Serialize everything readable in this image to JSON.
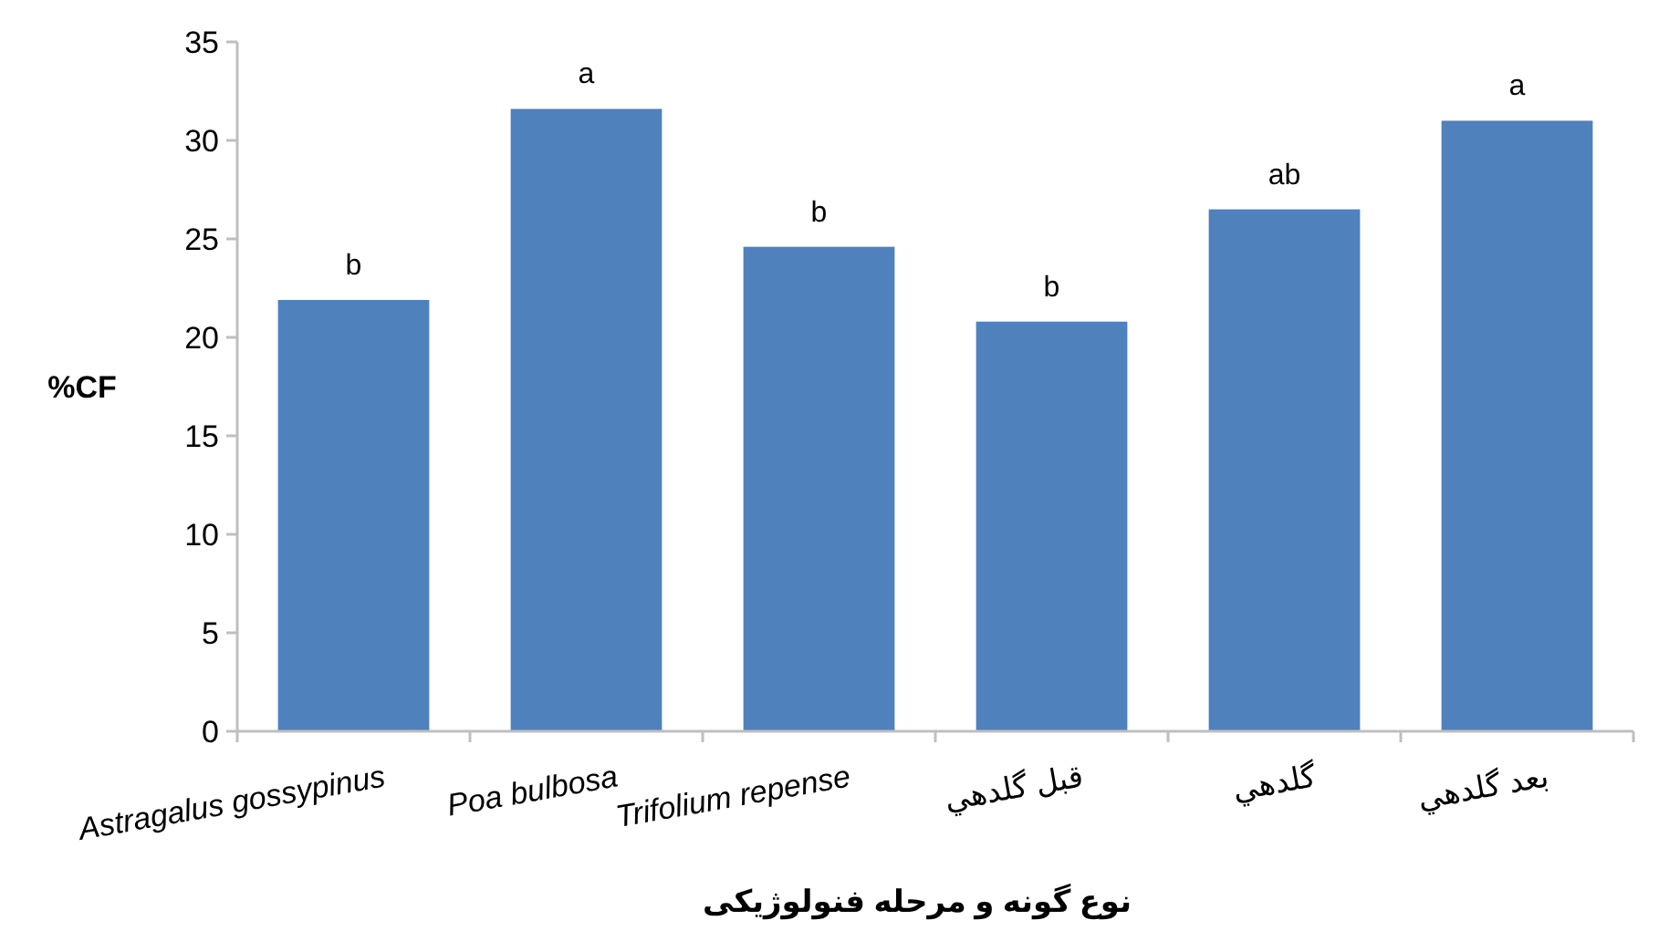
{
  "chart_data": {
    "type": "bar",
    "xlabel": "نوع گونه و مرحله فنولوژيکی",
    "ylabel": "%CF",
    "categories": [
      "Astragalus gossypinus",
      "Poa bulbosa",
      "Trifolium repense",
      "قبل گلدهي",
      "گلدهي",
      "بعد گلدهي"
    ],
    "values": [
      21.9,
      31.6,
      24.6,
      20.8,
      26.5,
      31.0
    ],
    "value_labels": [
      "b",
      "a",
      "b",
      "b",
      "ab",
      "a"
    ],
    "color": "#4f81bd",
    "ylim": [
      0,
      35
    ],
    "yticks": [
      0,
      5,
      10,
      15,
      20,
      25,
      30,
      35
    ],
    "grid": false
  }
}
